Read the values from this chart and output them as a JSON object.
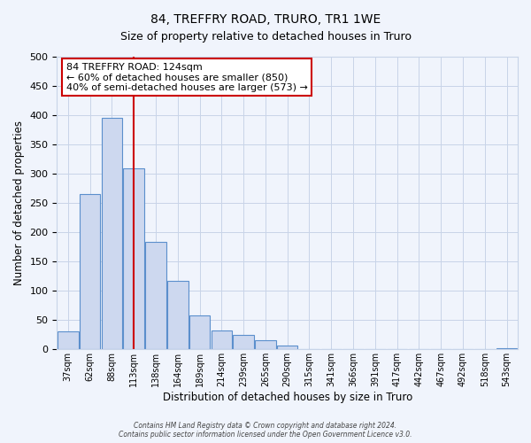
{
  "title": "84, TREFFRY ROAD, TRURO, TR1 1WE",
  "subtitle": "Size of property relative to detached houses in Truro",
  "xlabel": "Distribution of detached houses by size in Truro",
  "ylabel": "Number of detached properties",
  "footnote1": "Contains HM Land Registry data © Crown copyright and database right 2024.",
  "footnote2": "Contains public sector information licensed under the Open Government Licence v3.0.",
  "bar_labels": [
    "37sqm",
    "62sqm",
    "88sqm",
    "113sqm",
    "138sqm",
    "164sqm",
    "189sqm",
    "214sqm",
    "239sqm",
    "265sqm",
    "290sqm",
    "315sqm",
    "341sqm",
    "366sqm",
    "391sqm",
    "417sqm",
    "442sqm",
    "467sqm",
    "492sqm",
    "518sqm",
    "543sqm"
  ],
  "bar_values": [
    30,
    265,
    395,
    310,
    183,
    117,
    58,
    32,
    25,
    15,
    7,
    0,
    0,
    0,
    0,
    0,
    0,
    0,
    0,
    0,
    2
  ],
  "bar_color": "#cdd8ef",
  "bar_edge_color": "#5b8fcc",
  "annotation_box_text": "84 TREFFRY ROAD: 124sqm\n← 60% of detached houses are smaller (850)\n40% of semi-detached houses are larger (573) →",
  "red_line_bar_index": 3,
  "ylim": [
    0,
    500
  ],
  "yticks": [
    0,
    50,
    100,
    150,
    200,
    250,
    300,
    350,
    400,
    450,
    500
  ],
  "bg_color": "#f0f4fc",
  "grid_color": "#c8d4e8",
  "annotation_box_color": "#ffffff",
  "annotation_box_edge_color": "#cc0000",
  "red_line_color": "#cc0000"
}
